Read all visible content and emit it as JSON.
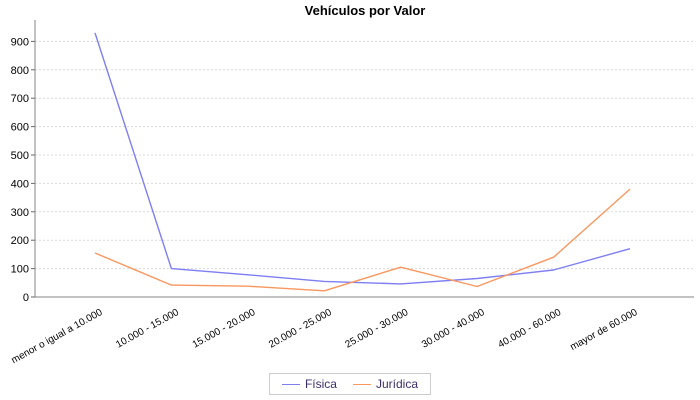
{
  "chart_data": {
    "type": "line",
    "title": "Vehículos por Valor",
    "categories": [
      "menor o igual a 10.000",
      "10.000 - 15.000",
      "15.000 - 20.000",
      "20.000 - 25.000",
      "25.000 - 30.000",
      "30.000 - 40.000",
      "40.000 - 60.000",
      "mayor de 60.000"
    ],
    "series": [
      {
        "name": "Física",
        "color": "#7e7ef2",
        "values": [
          930,
          100,
          78,
          55,
          46,
          65,
          95,
          170
        ]
      },
      {
        "name": "Jurídica",
        "color": "#f9975f",
        "values": [
          155,
          42,
          38,
          22,
          105,
          37,
          140,
          380
        ]
      }
    ],
    "yticks": [
      0,
      100,
      200,
      300,
      400,
      500,
      600,
      700,
      800,
      900
    ],
    "ylim": [
      0,
      975
    ],
    "grid": "horizontal-dashed",
    "legend_position": "bottom",
    "x_label_rotation_deg": -29
  },
  "colors": {
    "background": "#ffffff",
    "axis": "#848484",
    "tick": "#666666",
    "gridline": "#d9d9d9",
    "tick_label": "#000000",
    "title": "#000000",
    "legend_text": "#3e2d6e",
    "legend_border": "#cccccc"
  }
}
